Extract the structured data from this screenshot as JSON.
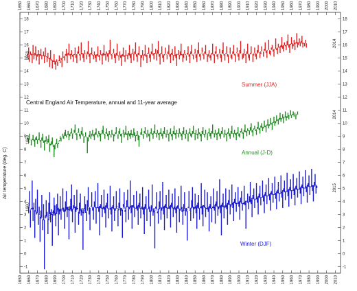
{
  "chart_data": {
    "type": "line",
    "title": "Central England Air Temperature, annual and 11-year average",
    "ylabel": "Air temperature (deg. C)",
    "x_ticks": [
      "1650",
      "1660",
      "1670",
      "1680",
      "1690",
      "1700",
      "1710",
      "1720",
      "1730",
      "1740",
      "1750",
      "1760",
      "1770",
      "1780",
      "1790",
      "1800",
      "1810",
      "1820",
      "1830",
      "1840",
      "1850",
      "1860",
      "1870",
      "1880",
      "1890",
      "1900",
      "1910",
      "1920",
      "1930",
      "1940",
      "1950",
      "1960",
      "1970",
      "1980",
      "1990",
      "2000",
      "2010"
    ],
    "xlim": [
      1650,
      2016
    ],
    "y_ticks": [
      "-1",
      "0",
      "1",
      "2",
      "3",
      "4",
      "5",
      "6",
      "7",
      "8",
      "9",
      "10",
      "11",
      "12",
      "13",
      "14",
      "15",
      "16",
      "17",
      "18"
    ],
    "ylim": [
      -1.5,
      18.5
    ],
    "grid": false,
    "series": [
      {
        "name": "Summer (JJA)",
        "color": "#e02020",
        "start_label": "1659",
        "end_label": "2014",
        "x_start": 1659,
        "values": [
          15.3,
          15.8,
          14.7,
          15.5,
          15.2,
          14.6,
          16.0,
          14.9,
          15.4,
          15.9,
          14.8,
          15.1,
          15.6,
          14.5,
          15.3,
          15.7,
          14.9,
          15.2,
          15.5,
          14.6,
          15.8,
          15.1,
          14.7,
          15.4,
          15.0,
          14.3,
          15.6,
          14.9,
          14.2,
          14.8,
          15.3,
          14.5,
          14.1,
          14.9,
          14.4,
          14.8,
          15.2,
          14.6,
          15.0,
          14.3,
          15.5,
          15.1,
          14.8,
          15.3,
          15.7,
          14.6,
          15.4,
          16.1,
          15.2,
          14.9,
          15.6,
          15.1,
          14.7,
          15.3,
          15.8,
          15.0,
          14.6,
          15.5,
          15.9,
          15.2,
          14.8,
          16.2,
          15.4,
          15.0,
          14.7,
          15.6,
          15.3,
          14.9,
          15.5,
          16.3,
          15.1,
          14.6,
          15.4,
          15.8,
          15.2,
          14.9,
          15.5,
          15.0,
          14.7,
          15.3,
          15.9,
          15.1,
          14.8,
          15.6,
          15.2,
          14.5,
          15.4,
          16.0,
          15.3,
          14.8,
          15.5,
          15.1,
          14.7,
          15.6,
          16.4,
          15.2,
          14.9,
          15.3,
          15.7,
          15.0,
          14.6,
          15.4,
          16.1,
          15.2,
          14.8,
          15.5,
          15.0,
          14.4,
          15.3,
          15.8,
          15.1,
          14.7,
          15.6,
          15.2,
          14.9,
          15.4,
          16.0,
          15.0,
          14.6,
          15.3,
          15.7,
          14.8,
          15.5,
          16.2,
          15.1,
          14.7,
          15.4,
          15.9,
          15.2,
          14.3,
          15.0,
          15.6,
          14.8,
          15.3,
          16.0,
          15.1,
          14.6,
          15.4,
          15.8,
          15.0,
          14.7,
          15.5,
          16.1,
          15.2,
          14.9,
          15.3,
          15.7,
          14.8,
          15.6,
          16.3,
          15.1,
          14.5,
          15.4,
          15.9,
          15.0,
          14.7,
          15.2,
          15.8,
          15.3,
          14.9,
          15.5,
          16.0,
          15.1,
          14.6,
          15.4,
          15.7,
          14.8,
          15.2,
          15.9,
          15.0,
          14.4,
          15.3,
          15.6,
          14.9,
          15.5,
          16.1,
          15.2,
          14.7,
          15.0,
          15.6,
          15.3,
          14.8,
          15.4,
          15.9,
          15.1,
          14.6,
          15.5,
          16.0,
          15.2,
          14.9,
          15.3,
          15.7,
          15.0,
          14.7,
          15.6,
          16.2,
          15.1,
          14.8,
          15.4,
          15.8,
          15.2,
          14.9,
          15.5,
          16.0,
          15.3,
          14.7,
          15.1,
          15.6,
          15.0,
          14.8,
          15.4,
          16.1,
          15.2,
          14.6,
          15.5,
          15.9,
          15.1,
          14.9,
          15.3,
          15.7,
          15.0,
          14.7,
          15.6,
          16.2,
          15.2,
          14.8,
          15.4,
          15.9,
          15.1,
          14.6,
          15.3,
          15.8,
          15.0,
          14.9,
          15.5,
          16.0,
          15.2,
          14.7,
          15.4,
          15.8,
          15.1,
          14.8,
          15.6,
          16.3,
          15.3,
          14.9,
          15.0,
          15.7,
          15.2,
          14.6,
          15.5,
          16.1,
          15.0,
          14.8,
          15.4,
          15.9,
          15.3,
          14.7,
          15.2,
          15.8,
          15.1,
          14.9,
          15.6,
          16.0,
          15.4,
          15.0,
          15.3,
          15.9,
          15.5,
          15.1,
          15.7,
          16.2,
          15.4,
          15.0,
          15.6,
          16.4,
          15.3,
          15.2,
          15.8,
          16.0,
          15.5,
          15.1,
          15.7,
          16.5,
          15.6,
          15.3,
          16.1,
          15.8,
          15.4,
          16.0,
          16.6,
          15.7,
          15.5,
          16.2,
          15.9,
          15.6,
          16.3,
          16.8,
          15.8,
          15.4,
          16.1,
          16.6,
          15.7,
          15.9,
          16.4,
          15.6,
          16.2,
          16.9,
          15.8,
          16.0,
          16.5,
          15.9,
          16.3,
          16.7,
          15.8,
          16.1,
          15.9,
          16.4,
          15.8
        ]
      },
      {
        "name": "Annual (J-D)",
        "color": "#1f8a1f",
        "start_label": "1659",
        "end_label": "2014",
        "x_start": 1659,
        "values": [
          8.9,
          8.5,
          9.2,
          8.7,
          8.3,
          8.8,
          9.1,
          8.6,
          8.2,
          8.9,
          9.0,
          8.4,
          8.8,
          9.3,
          8.6,
          8.1,
          8.9,
          9.2,
          8.5,
          7.9,
          8.7,
          9.0,
          8.4,
          8.8,
          9.1,
          7.8,
          8.3,
          8.6,
          8.9,
          8.2,
          7.4,
          8.0,
          8.5,
          8.8,
          8.1,
          8.4,
          8.7,
          9.0,
          8.6,
          8.9,
          9.2,
          8.8,
          9.3,
          9.5,
          8.9,
          9.1,
          9.4,
          8.7,
          9.0,
          9.3,
          9.6,
          8.8,
          9.2,
          9.5,
          9.9,
          9.1,
          8.7,
          9.3,
          9.6,
          9.0,
          8.8,
          9.4,
          9.7,
          9.2,
          8.5,
          9.0,
          9.3,
          8.9,
          7.7,
          8.6,
          9.1,
          9.4,
          8.8,
          9.2,
          9.5,
          9.0,
          8.7,
          9.3,
          9.6,
          9.1,
          8.9,
          9.4,
          9.0,
          8.6,
          9.2,
          9.5,
          9.8,
          9.1,
          8.8,
          9.3,
          9.6,
          9.0,
          8.7,
          9.4,
          9.1,
          8.9,
          9.5,
          9.2,
          8.6,
          9.0,
          9.3,
          9.7,
          9.1,
          8.8,
          9.4,
          9.6,
          9.0,
          8.5,
          9.2,
          9.5,
          8.9,
          9.3,
          9.8,
          9.1,
          8.7,
          9.4,
          9.0,
          8.8,
          9.5,
          9.2,
          8.9,
          9.6,
          9.3,
          8.6,
          9.1,
          9.4,
          8.7,
          8.2,
          9.0,
          9.3,
          9.6,
          9.1,
          8.8,
          9.4,
          9.7,
          9.2,
          8.9,
          9.5,
          9.0,
          8.6,
          9.3,
          9.6,
          9.1,
          8.8,
          9.4,
          9.9,
          9.2,
          8.9,
          9.5,
          9.1,
          8.7,
          9.3,
          9.6,
          9.0,
          8.8,
          9.4,
          9.7,
          9.2,
          8.9,
          9.5,
          9.1,
          8.6,
          9.3,
          9.6,
          9.0,
          8.7,
          9.4,
          9.8,
          9.1,
          8.8,
          9.5,
          9.2,
          8.9,
          9.6,
          9.3,
          9.0,
          8.7,
          9.4,
          9.7,
          9.1,
          8.8,
          9.5,
          9.2,
          8.6,
          9.3,
          9.6,
          9.0,
          8.9,
          9.4,
          9.8,
          9.2,
          8.7,
          9.5,
          9.1,
          8.8,
          9.6,
          9.3,
          9.0,
          8.6,
          9.4,
          9.7,
          9.1,
          8.9,
          9.5,
          9.2,
          8.7,
          9.3,
          9.6,
          9.0,
          8.8,
          9.4,
          9.9,
          9.2,
          8.9,
          9.5,
          9.1,
          8.7,
          9.3,
          9.6,
          9.0,
          8.8,
          9.4,
          9.7,
          9.2,
          8.9,
          9.5,
          9.1,
          8.6,
          9.3,
          9.6,
          9.0,
          8.8,
          9.4,
          9.8,
          9.2,
          8.9,
          9.5,
          9.1,
          8.7,
          9.3,
          9.7,
          9.0,
          8.9,
          9.4,
          9.6,
          9.2,
          8.8,
          9.5,
          9.9,
          9.3,
          9.0,
          9.6,
          9.4,
          9.1,
          9.7,
          10.0,
          9.3,
          9.0,
          9.6,
          9.8,
          9.4,
          9.1,
          9.7,
          10.1,
          9.5,
          9.2,
          9.8,
          10.0,
          9.4,
          9.6,
          10.2,
          9.7,
          9.3,
          9.9,
          10.3,
          9.6,
          9.8,
          10.4,
          9.9,
          9.5,
          10.1,
          10.5,
          9.8,
          10.0,
          10.6,
          10.2,
          9.9,
          10.4,
          10.8,
          10.1,
          10.3,
          10.7,
          10.0,
          10.5,
          10.9,
          10.2,
          10.4,
          10.8,
          10.3,
          10.6,
          11.0,
          10.4,
          10.7,
          10.9,
          10.5,
          10.8,
          10.3,
          10.6,
          10.9
        ]
      },
      {
        "name": "Winter (DJF)",
        "color": "#1a1ad0",
        "start_label": "1660",
        "end_label": "2015",
        "x_start": 1660,
        "values": [
          3.1,
          4.8,
          2.0,
          3.5,
          5.6,
          2.5,
          3.9,
          1.2,
          4.2,
          3.0,
          4.9,
          2.2,
          3.6,
          0.9,
          3.3,
          4.5,
          1.8,
          3.8,
          -1.2,
          2.7,
          4.1,
          3.2,
          1.5,
          3.9,
          4.7,
          2.4,
          3.4,
          0.6,
          2.9,
          4.3,
          3.7,
          2.1,
          3.8,
          4.6,
          1.4,
          3.0,
          4.4,
          2.6,
          3.5,
          5.0,
          3.2,
          1.9,
          4.0,
          4.8,
          2.8,
          3.6,
          1.1,
          3.3,
          4.2,
          5.3,
          2.4,
          3.7,
          4.5,
          1.6,
          3.2,
          4.9,
          3.4,
          2.2,
          3.9,
          4.6,
          2.9,
          3.5,
          0.3,
          3.1,
          4.4,
          3.8,
          2.5,
          4.1,
          5.1,
          3.0,
          1.8,
          3.6,
          4.7,
          3.3,
          2.6,
          4.0,
          4.8,
          2.3,
          3.5,
          5.4,
          3.2,
          1.4,
          3.8,
          4.5,
          2.8,
          3.6,
          4.9,
          3.1,
          2.0,
          3.9,
          4.6,
          2.7,
          3.4,
          5.2,
          3.0,
          1.7,
          3.7,
          4.4,
          2.5,
          3.3,
          4.8,
          3.6,
          2.1,
          3.9,
          5.0,
          2.9,
          3.5,
          1.2,
          3.8,
          4.7,
          3.2,
          2.4,
          4.1,
          4.9,
          2.6,
          3.4,
          5.6,
          3.1,
          1.9,
          3.7,
          4.5,
          2.8,
          3.5,
          4.8,
          3.3,
          2.2,
          3.9,
          4.6,
          2.7,
          3.6,
          5.1,
          3.0,
          1.5,
          3.8,
          4.4,
          2.5,
          3.4,
          4.9,
          3.2,
          2.1,
          3.7,
          5.3,
          2.9,
          3.5,
          0.4,
          3.6,
          4.7,
          3.1,
          2.3,
          4.0,
          4.8,
          2.6,
          3.3,
          5.5,
          3.0,
          1.8,
          3.8,
          4.5,
          2.7,
          3.5,
          4.9,
          3.4,
          2.0,
          3.9,
          4.6,
          2.8,
          3.6,
          5.0,
          3.1,
          1.6,
          3.7,
          4.4,
          2.4,
          3.3,
          5.2,
          3.2,
          2.2,
          3.8,
          4.7,
          2.9,
          3.5,
          1.0,
          3.6,
          4.8,
          3.3,
          2.5,
          4.1,
          5.1,
          2.7,
          3.4,
          4.6,
          3.1,
          1.9,
          3.9,
          4.5,
          2.6,
          3.6,
          5.4,
          3.0,
          2.1,
          3.7,
          4.9,
          2.8,
          3.5,
          4.7,
          3.2,
          1.7,
          3.8,
          4.4,
          2.4,
          3.6,
          5.0,
          3.3,
          2.3,
          4.0,
          4.8,
          2.9,
          3.4,
          5.7,
          3.1,
          1.4,
          3.9,
          4.6,
          2.7,
          3.7,
          5.0,
          3.4,
          2.2,
          4.1,
          4.9,
          3.0,
          3.6,
          5.3,
          3.5,
          2.5,
          4.2,
          4.7,
          3.2,
          3.8,
          5.1,
          3.6,
          2.6,
          4.3,
          4.8,
          3.3,
          3.9,
          5.2,
          3.7,
          1.9,
          4.0,
          4.6,
          3.4,
          4.4,
          5.5,
          3.8,
          2.8,
          4.5,
          5.0,
          3.5,
          4.2,
          5.4,
          3.9,
          3.0,
          4.6,
          5.2,
          3.7,
          4.3,
          5.6,
          4.0,
          3.1,
          4.7,
          5.3,
          3.8,
          4.4,
          5.8,
          4.1,
          3.3,
          4.8,
          5.4,
          3.9,
          4.5,
          5.9,
          4.2,
          3.4,
          4.9,
          5.5,
          4.0,
          4.6,
          6.0,
          4.3,
          3.5,
          5.0,
          5.6,
          4.1,
          4.7,
          6.2,
          4.4,
          3.6,
          5.1,
          5.7,
          4.2,
          4.8,
          6.1,
          4.5,
          3.7,
          5.2,
          5.8,
          4.3,
          4.9,
          6.3,
          4.6,
          3.8,
          5.3,
          5.9,
          4.4,
          5.0,
          6.4,
          4.7,
          3.9,
          5.4,
          6.0,
          4.5,
          5.1,
          6.5,
          4.8,
          4.0,
          5.5,
          6.1,
          4.6,
          5.2
        ]
      }
    ]
  }
}
